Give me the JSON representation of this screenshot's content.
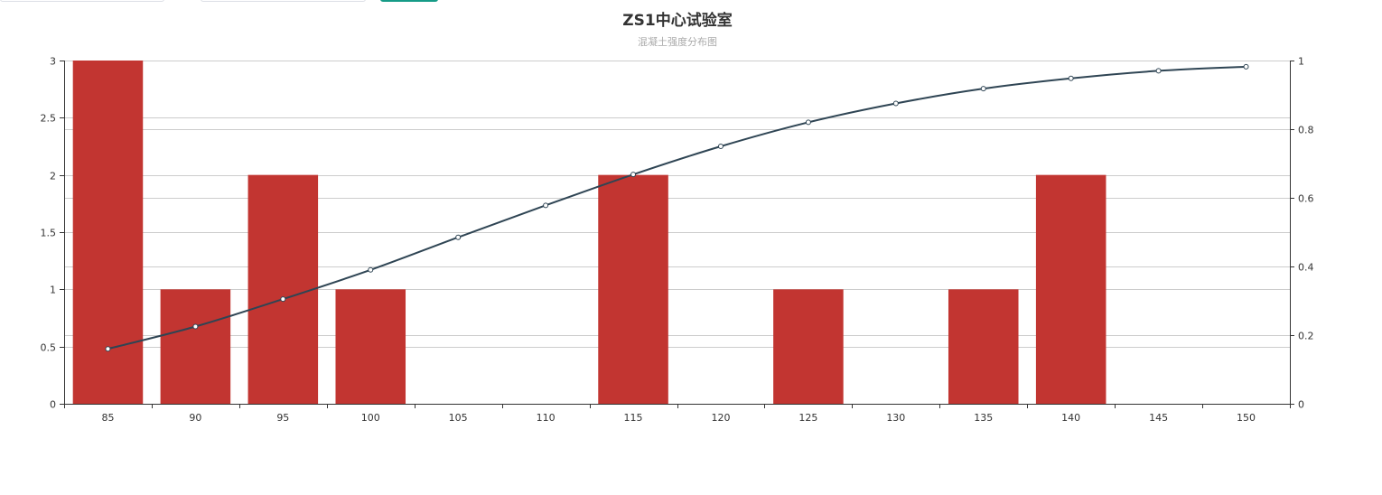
{
  "colors": {
    "bar": "#c23531",
    "line": "#2f4554",
    "axis": "#333333",
    "grid": "#cccccc",
    "title": "#333333",
    "subtitle": "#aaaaaa",
    "button": "#169b87",
    "tick_label": "#333333"
  },
  "chart_data": {
    "type": "bar",
    "title": "ZS1中心试验室",
    "subtitle": "混凝土强度分布图",
    "categories": [
      "85",
      "90",
      "95",
      "100",
      "105",
      "110",
      "115",
      "120",
      "125",
      "130",
      "135",
      "140",
      "145",
      "150"
    ],
    "series": [
      {
        "type": "bar",
        "axis": "left",
        "values": [
          3,
          1,
          2,
          1,
          0,
          0,
          2,
          0,
          1,
          0,
          1,
          2,
          0,
          0
        ]
      },
      {
        "type": "line",
        "axis": "right",
        "smooth": true,
        "values": [
          0.16,
          0.225,
          0.305,
          0.39,
          0.485,
          0.578,
          0.668,
          0.75,
          0.82,
          0.875,
          0.918,
          0.948,
          0.97,
          0.982
        ]
      }
    ],
    "y_left": {
      "ylim": [
        0,
        3
      ],
      "ticks": [
        0,
        0.5,
        1,
        1.5,
        2,
        2.5,
        3
      ],
      "tick_labels": [
        "0",
        "0.5",
        "1",
        "1.5",
        "2",
        "2.5",
        "3"
      ]
    },
    "y_right": {
      "ylim": [
        0,
        1
      ],
      "ticks": [
        0,
        0.2,
        0.4,
        0.6,
        0.8,
        1
      ],
      "tick_labels": [
        "0",
        "0.2",
        "0.4",
        "0.6",
        "0.8",
        "1"
      ]
    },
    "grid": true,
    "legend": "none"
  }
}
